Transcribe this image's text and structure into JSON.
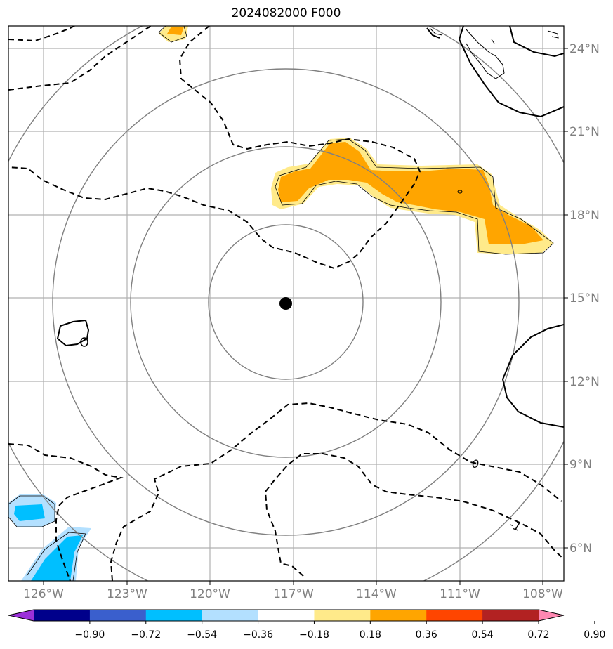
{
  "title": "2024082000 F000",
  "longitude_labels": [
    "126°W",
    "123°W",
    "120°W",
    "117°W",
    "114°W",
    "111°W",
    "108°W"
  ],
  "latitude_labels": [
    "24°N",
    "21°N",
    "18°N",
    "15°N",
    "12°N",
    "9°N",
    "6°N"
  ],
  "contour_labels": [
    "0",
    "-1"
  ],
  "colorbar": {
    "tick_labels": [
      "−0.90",
      "−0.72",
      "−0.54",
      "−0.36",
      "−0.18",
      "0.18",
      "0.36",
      "0.54",
      "0.72",
      "0.90"
    ],
    "colors": [
      "#9b30d9",
      "#00008b",
      "#3a5fcd",
      "#00bfff",
      "#b3e0ff",
      "#ffffff",
      "#ffea8a",
      "#ffa500",
      "#ff4500",
      "#b22222",
      "#ff88b2"
    ]
  },
  "colors": {
    "gridline": "#b0b0b0",
    "range_ring": "#808080",
    "positive_fill_light": "#ffea8a",
    "positive_fill": "#ffa500",
    "negative_fill_light": "#b3e0ff",
    "negative_fill": "#00bfff"
  }
}
